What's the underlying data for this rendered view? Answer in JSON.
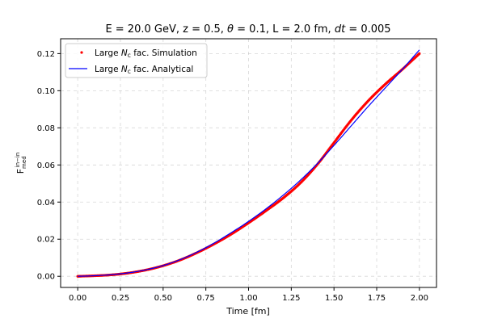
{
  "chart_data": {
    "type": "line",
    "title": "E = 20.0 GeV, z = 0.5, θ = 0.1, L = 2.0 fm, dt = 0.005",
    "title_parts": {
      "prefix": "E = 20.0 GeV, z = 0.5, ",
      "theta": "θ",
      "mid": " = 0.1, L = 2.0 fm, ",
      "dt": "dt",
      "suffix": " = 0.005"
    },
    "xlabel": "Time [fm]",
    "ylabel": "F^{in−in}_{med}",
    "ylabel_parts": {
      "base": "F",
      "sub": "med",
      "sup": "in−in"
    },
    "xlim": [
      -0.1,
      2.1
    ],
    "ylim": [
      -0.006,
      0.128
    ],
    "xticks": [
      "0.00",
      "0.25",
      "0.50",
      "0.75",
      "1.00",
      "1.25",
      "1.50",
      "1.75",
      "2.00"
    ],
    "yticks": [
      "0.00",
      "0.02",
      "0.04",
      "0.06",
      "0.08",
      "0.10",
      "0.12"
    ],
    "grid": true,
    "legend_position": "upper-left",
    "series": [
      {
        "name": "Large N_c fac. Simulation",
        "name_parts": {
          "pre": "Large ",
          "italic": "N",
          "sub": "c",
          "post": " fac. Simulation"
        },
        "style": "points",
        "color": "#ff0000",
        "x": [
          0.0,
          0.1,
          0.2,
          0.3,
          0.4,
          0.5,
          0.6,
          0.7,
          0.8,
          0.9,
          1.0,
          1.1,
          1.2,
          1.3,
          1.4,
          1.5,
          1.6,
          1.7,
          1.8,
          1.9,
          2.0
        ],
        "y": [
          0.0,
          0.0003,
          0.0008,
          0.0018,
          0.0034,
          0.0057,
          0.0088,
          0.0128,
          0.0175,
          0.0228,
          0.0288,
          0.0352,
          0.042,
          0.05,
          0.06,
          0.072,
          0.084,
          0.0945,
          0.1035,
          0.1115,
          0.12
        ]
      },
      {
        "name": "Large N_c fac. Analytical",
        "name_parts": {
          "pre": "Large ",
          "italic": "N",
          "sub": "c",
          "post": " fac. Analytical"
        },
        "style": "line",
        "color": "#0000ff",
        "x": [
          0.0,
          0.1,
          0.2,
          0.3,
          0.4,
          0.5,
          0.6,
          0.7,
          0.8,
          0.9,
          1.0,
          1.1,
          1.2,
          1.3,
          1.4,
          1.5,
          1.6,
          1.7,
          1.8,
          1.9,
          2.0
        ],
        "y": [
          0.0,
          0.0003,
          0.0009,
          0.0019,
          0.0035,
          0.0058,
          0.009,
          0.0131,
          0.018,
          0.0236,
          0.0296,
          0.0362,
          0.0435,
          0.0515,
          0.0605,
          0.0705,
          0.081,
          0.0915,
          0.1015,
          0.1115,
          0.122
        ]
      }
    ]
  }
}
